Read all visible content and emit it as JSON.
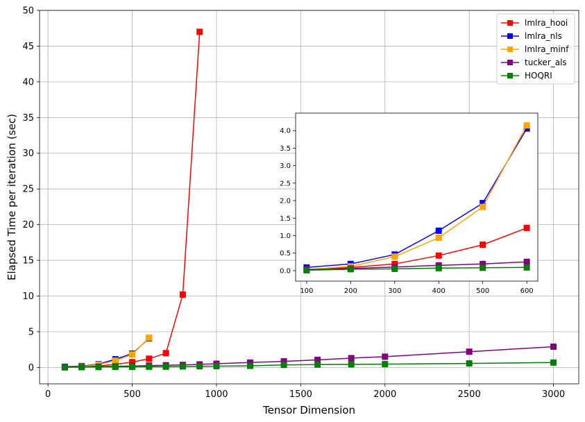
{
  "chart_data": {
    "type": "line",
    "title": "",
    "xlabel": "Tensor Dimension",
    "ylabel": "Elapsed Time per iteration (sec)",
    "xlim": [
      -50,
      3150
    ],
    "ylim": [
      -2.3,
      50
    ],
    "xticks": [
      0,
      500,
      1000,
      1500,
      2000,
      2500,
      3000
    ],
    "yticks": [
      0,
      5,
      10,
      15,
      20,
      25,
      30,
      35,
      40,
      45,
      50
    ],
    "grid": true,
    "legend_position": "top-right",
    "series": [
      {
        "name": "lmlra_hooi",
        "color": "#ff0000",
        "x": [
          100,
          200,
          300,
          400,
          500,
          600,
          700,
          800,
          900
        ],
        "y": [
          0.02,
          0.09,
          0.19,
          0.43,
          0.74,
          1.22,
          2.0,
          10.2,
          47.0
        ]
      },
      {
        "name": "lmlra_nls",
        "color": "#0000ff",
        "x": [
          100,
          200,
          300,
          400,
          500,
          600
        ],
        "y": [
          0.09,
          0.19,
          0.46,
          1.14,
          1.93,
          4.06
        ]
      },
      {
        "name": "lmlra_minf",
        "color": "#ffa500",
        "x": [
          100,
          200,
          300,
          400,
          500,
          600
        ],
        "y": [
          0.03,
          0.12,
          0.4,
          0.94,
          1.82,
          4.15
        ]
      },
      {
        "name": "tucker_als",
        "color": "#800080",
        "x": [
          100,
          200,
          300,
          400,
          500,
          600,
          700,
          800,
          900,
          1000,
          1200,
          1400,
          1600,
          1800,
          2000,
          2500,
          3000
        ],
        "y": [
          0.03,
          0.06,
          0.1,
          0.15,
          0.19,
          0.25,
          0.3,
          0.35,
          0.42,
          0.52,
          0.68,
          0.85,
          1.05,
          1.3,
          1.5,
          2.2,
          2.9
        ]
      },
      {
        "name": "HOQRI",
        "color": "#008000",
        "x": [
          100,
          200,
          300,
          400,
          500,
          600,
          700,
          800,
          900,
          1000,
          1200,
          1400,
          1600,
          1800,
          2000,
          2500,
          3000
        ],
        "y": [
          0.01,
          0.04,
          0.05,
          0.07,
          0.08,
          0.09,
          0.1,
          0.13,
          0.16,
          0.18,
          0.22,
          0.35,
          0.4,
          0.42,
          0.46,
          0.56,
          0.68
        ]
      }
    ],
    "inset": {
      "xlim": [
        75,
        625
      ],
      "ylim": [
        -0.3,
        4.5
      ],
      "xticks": [
        100,
        200,
        300,
        400,
        500,
        600
      ],
      "yticks": [
        0.0,
        0.5,
        1.0,
        1.5,
        2.0,
        2.5,
        3.0,
        3.5,
        4.0
      ],
      "x_max": 600
    }
  }
}
